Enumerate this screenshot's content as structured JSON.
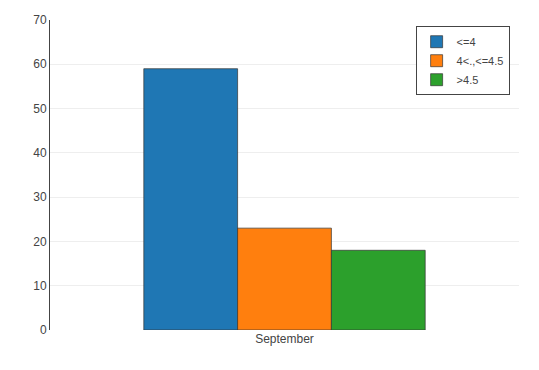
{
  "chart_data": {
    "type": "bar",
    "categories": [
      "September"
    ],
    "series": [
      {
        "name": "<=4",
        "values": [
          59
        ]
      },
      {
        "name": "4<.,<=4.5",
        "values": [
          23
        ]
      },
      {
        "name": ">4.5",
        "values": [
          18
        ]
      }
    ],
    "ylim": [
      0,
      70
    ],
    "yticks": [
      0,
      10,
      20,
      30,
      40,
      50,
      60,
      70
    ],
    "grid": true,
    "legend": "upper right"
  }
}
